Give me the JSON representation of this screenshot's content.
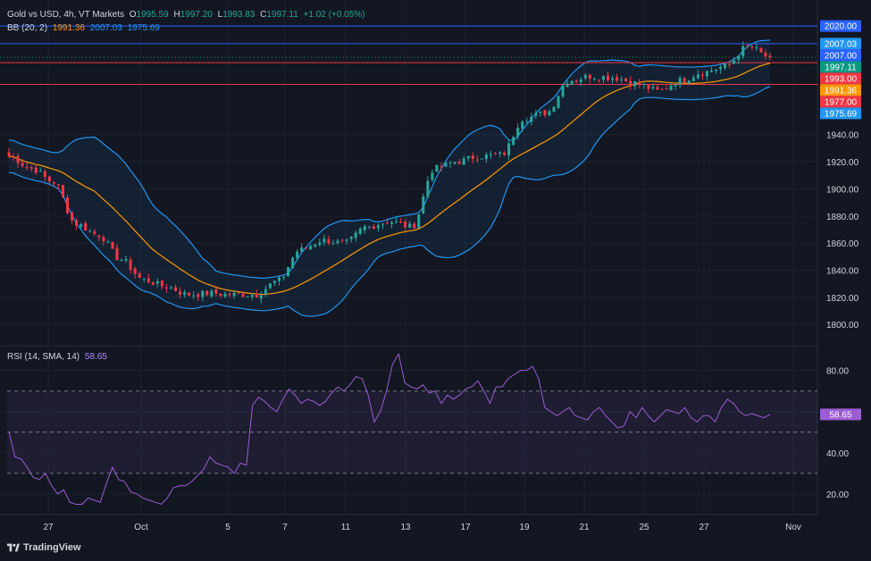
{
  "header": {
    "symbol": "Gold vs USD, 4h, VT Markets",
    "o_label": "O",
    "o": "1995.59",
    "h_label": "H",
    "h": "1997.20",
    "l_label": "L",
    "l": "1993.83",
    "c_label": "C",
    "c": "1997.11",
    "change": "+1.02 (+0.05%)"
  },
  "bb_legend": {
    "label": "BB (20, 2)",
    "basis": "1991.36",
    "upper": "2007.03",
    "lower": "1975.69"
  },
  "rsi_legend": {
    "label": "RSI (14, SMA, 14)",
    "value": "58.65"
  },
  "brand": "TradingView",
  "colors": {
    "bg": "#131722",
    "up": "#26a69a",
    "down": "#f23645",
    "basis": "#ff9800",
    "band": "#2196f3",
    "rsi": "#9c5cd4",
    "hline_red": "#f23645",
    "hline_blue": "#2962ff"
  },
  "chart_data": [
    {
      "type": "candlestick",
      "series": [
        {
          "name": "Gold vs USD",
          "ohlc_control_points": [
            [
              "Sep 25",
              1924
            ],
            [
              "Sep 26",
              1915
            ],
            [
              "Sep 27",
              1905
            ],
            [
              "Sep 28",
              1874
            ],
            [
              "Sep 29",
              1866
            ],
            [
              "Sep 30",
              1848
            ],
            [
              "Oct 1",
              1833
            ],
            [
              "Oct 2",
              1828
            ],
            [
              "Oct 3",
              1822
            ],
            [
              "Oct 4",
              1823
            ],
            [
              "Oct 5",
              1822
            ],
            [
              "Oct 6",
              1822
            ],
            [
              "Oct 7",
              1832
            ],
            [
              "Oct 8",
              1855
            ],
            [
              "Oct 9",
              1862
            ],
            [
              "Oct 10",
              1860
            ],
            [
              "Oct 11",
              1872
            ],
            [
              "Oct 12",
              1876
            ],
            [
              "Oct 13",
              1872
            ],
            [
              "Oct 14",
              1915
            ],
            [
              "Oct 15",
              1920
            ],
            [
              "Oct 16",
              1924
            ],
            [
              "Oct 17",
              1925
            ],
            [
              "Oct 18",
              1952
            ],
            [
              "Oct 19",
              1956
            ],
            [
              "Oct 20",
              1980
            ],
            [
              "Oct 21",
              1983
            ],
            [
              "Oct 22",
              1982
            ],
            [
              "Oct 23",
              1978
            ],
            [
              "Oct 24",
              1972
            ],
            [
              "Oct 25",
              1980
            ],
            [
              "Oct 26",
              1986
            ],
            [
              "Oct 27",
              1990
            ],
            [
              "Oct 28",
              2005
            ],
            [
              "Oct 29",
              1997
            ]
          ]
        },
        {
          "name": "BB basis",
          "values": "computed 20-period"
        },
        {
          "name": "BB upper"
        },
        {
          "name": "BB lower"
        }
      ],
      "price_axis": {
        "ticks": [
          "1800.00",
          "1820.00",
          "1840.00",
          "1860.00",
          "1880.00",
          "1900.00",
          "1920.00",
          "1940.00"
        ],
        "ylim": [
          1785,
          2030
        ]
      },
      "price_labels": [
        {
          "text": "2020.00",
          "value": 2020,
          "color": "#2962ff"
        },
        {
          "text": "2007.03",
          "value": 2007.03,
          "color": "#2196f3"
        },
        {
          "text": "2007.00",
          "value": 2007.0,
          "color": "#2962ff"
        },
        {
          "text": "1997.11",
          "value": 1997.11,
          "color": "#089981"
        },
        {
          "text": "1993.00",
          "value": 1993.0,
          "color": "#f23645"
        },
        {
          "text": "1991.36",
          "value": 1991.36,
          "color": "#ff9800"
        },
        {
          "text": "1977.00",
          "value": 1977.0,
          "color": "#f23645"
        },
        {
          "text": "1975.69",
          "value": 1975.69,
          "color": "#2196f3"
        }
      ],
      "horizontal_lines": [
        {
          "value": 2020,
          "color": "#2962ff"
        },
        {
          "value": 2007,
          "color": "#2962ff"
        },
        {
          "value": 1993,
          "color": "#f23645"
        },
        {
          "value": 1977,
          "color": "#f23645"
        }
      ]
    },
    {
      "type": "line",
      "series": [
        {
          "name": "RSI",
          "values": [
            50,
            38,
            37,
            33,
            28,
            27,
            30,
            24,
            20,
            22,
            16,
            15,
            15,
            18,
            17,
            16,
            25,
            33,
            27,
            26,
            21,
            20,
            18,
            17,
            16,
            15,
            18,
            23,
            24,
            24,
            26,
            29,
            32,
            38,
            35,
            34,
            33,
            30,
            35,
            34,
            63,
            67,
            65,
            62,
            60,
            66,
            71,
            68,
            64,
            66,
            65,
            63,
            65,
            69,
            72,
            70,
            73,
            77,
            76,
            68,
            55,
            60,
            70,
            83,
            88,
            74,
            72,
            71,
            73,
            69,
            70,
            64,
            68,
            66,
            68,
            71,
            72,
            75,
            70,
            64,
            72,
            72,
            76,
            78,
            80,
            80,
            82,
            76,
            62,
            60,
            58,
            60,
            62,
            58,
            57,
            56,
            60,
            62,
            58,
            55,
            52,
            53,
            60,
            57,
            62,
            58,
            55,
            58,
            61,
            60,
            59,
            62,
            57,
            55,
            58,
            58,
            55,
            62,
            66,
            64,
            60,
            58,
            59,
            58,
            57,
            58.65
          ]
        }
      ],
      "axis": {
        "ticks": [
          "20.00",
          "40.00",
          "60.00",
          "80.00"
        ],
        "ylim": [
          10,
          92
        ]
      },
      "levels": [
        70,
        50,
        30
      ],
      "last_value": "58.65"
    }
  ],
  "time_axis": {
    "ticks": [
      "27",
      "Oct",
      "5",
      "7",
      "11",
      "13",
      "17",
      "19",
      "21",
      "25",
      "27",
      "Nov"
    ]
  }
}
